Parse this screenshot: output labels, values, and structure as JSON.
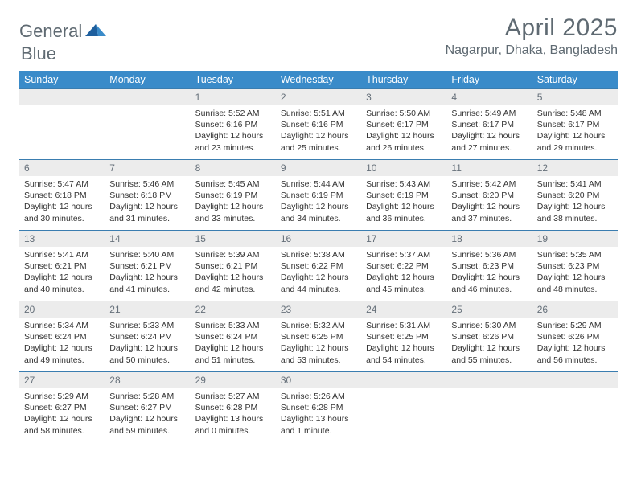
{
  "brand": {
    "word1": "General",
    "word2": "Blue"
  },
  "title": "April 2025",
  "location": "Nagarpur, Dhaka, Bangladesh",
  "colors": {
    "header_bg": "#3a8bc9",
    "header_text": "#ffffff",
    "row_divider": "#3a7db0",
    "daynum_bg": "#ececec",
    "daynum_text": "#66707a",
    "body_text": "#333333",
    "title_text": "#5f6a72",
    "page_bg": "#ffffff",
    "brand_gray": "#5f6a72",
    "brand_blue": "#2b7bbf"
  },
  "weekdays": [
    "Sunday",
    "Monday",
    "Tuesday",
    "Wednesday",
    "Thursday",
    "Friday",
    "Saturday"
  ],
  "weeks": [
    [
      null,
      null,
      {
        "n": "1",
        "sr": "5:52 AM",
        "ss": "6:16 PM",
        "dl": "12 hours and 23 minutes."
      },
      {
        "n": "2",
        "sr": "5:51 AM",
        "ss": "6:16 PM",
        "dl": "12 hours and 25 minutes."
      },
      {
        "n": "3",
        "sr": "5:50 AM",
        "ss": "6:17 PM",
        "dl": "12 hours and 26 minutes."
      },
      {
        "n": "4",
        "sr": "5:49 AM",
        "ss": "6:17 PM",
        "dl": "12 hours and 27 minutes."
      },
      {
        "n": "5",
        "sr": "5:48 AM",
        "ss": "6:17 PM",
        "dl": "12 hours and 29 minutes."
      }
    ],
    [
      {
        "n": "6",
        "sr": "5:47 AM",
        "ss": "6:18 PM",
        "dl": "12 hours and 30 minutes."
      },
      {
        "n": "7",
        "sr": "5:46 AM",
        "ss": "6:18 PM",
        "dl": "12 hours and 31 minutes."
      },
      {
        "n": "8",
        "sr": "5:45 AM",
        "ss": "6:19 PM",
        "dl": "12 hours and 33 minutes."
      },
      {
        "n": "9",
        "sr": "5:44 AM",
        "ss": "6:19 PM",
        "dl": "12 hours and 34 minutes."
      },
      {
        "n": "10",
        "sr": "5:43 AM",
        "ss": "6:19 PM",
        "dl": "12 hours and 36 minutes."
      },
      {
        "n": "11",
        "sr": "5:42 AM",
        "ss": "6:20 PM",
        "dl": "12 hours and 37 minutes."
      },
      {
        "n": "12",
        "sr": "5:41 AM",
        "ss": "6:20 PM",
        "dl": "12 hours and 38 minutes."
      }
    ],
    [
      {
        "n": "13",
        "sr": "5:41 AM",
        "ss": "6:21 PM",
        "dl": "12 hours and 40 minutes."
      },
      {
        "n": "14",
        "sr": "5:40 AM",
        "ss": "6:21 PM",
        "dl": "12 hours and 41 minutes."
      },
      {
        "n": "15",
        "sr": "5:39 AM",
        "ss": "6:21 PM",
        "dl": "12 hours and 42 minutes."
      },
      {
        "n": "16",
        "sr": "5:38 AM",
        "ss": "6:22 PM",
        "dl": "12 hours and 44 minutes."
      },
      {
        "n": "17",
        "sr": "5:37 AM",
        "ss": "6:22 PM",
        "dl": "12 hours and 45 minutes."
      },
      {
        "n": "18",
        "sr": "5:36 AM",
        "ss": "6:23 PM",
        "dl": "12 hours and 46 minutes."
      },
      {
        "n": "19",
        "sr": "5:35 AM",
        "ss": "6:23 PM",
        "dl": "12 hours and 48 minutes."
      }
    ],
    [
      {
        "n": "20",
        "sr": "5:34 AM",
        "ss": "6:24 PM",
        "dl": "12 hours and 49 minutes."
      },
      {
        "n": "21",
        "sr": "5:33 AM",
        "ss": "6:24 PM",
        "dl": "12 hours and 50 minutes."
      },
      {
        "n": "22",
        "sr": "5:33 AM",
        "ss": "6:24 PM",
        "dl": "12 hours and 51 minutes."
      },
      {
        "n": "23",
        "sr": "5:32 AM",
        "ss": "6:25 PM",
        "dl": "12 hours and 53 minutes."
      },
      {
        "n": "24",
        "sr": "5:31 AM",
        "ss": "6:25 PM",
        "dl": "12 hours and 54 minutes."
      },
      {
        "n": "25",
        "sr": "5:30 AM",
        "ss": "6:26 PM",
        "dl": "12 hours and 55 minutes."
      },
      {
        "n": "26",
        "sr": "5:29 AM",
        "ss": "6:26 PM",
        "dl": "12 hours and 56 minutes."
      }
    ],
    [
      {
        "n": "27",
        "sr": "5:29 AM",
        "ss": "6:27 PM",
        "dl": "12 hours and 58 minutes."
      },
      {
        "n": "28",
        "sr": "5:28 AM",
        "ss": "6:27 PM",
        "dl": "12 hours and 59 minutes."
      },
      {
        "n": "29",
        "sr": "5:27 AM",
        "ss": "6:28 PM",
        "dl": "13 hours and 0 minutes."
      },
      {
        "n": "30",
        "sr": "5:26 AM",
        "ss": "6:28 PM",
        "dl": "13 hours and 1 minute."
      },
      null,
      null,
      null
    ]
  ],
  "labels": {
    "sunrise": "Sunrise: ",
    "sunset": "Sunset: ",
    "daylight": "Daylight: "
  }
}
